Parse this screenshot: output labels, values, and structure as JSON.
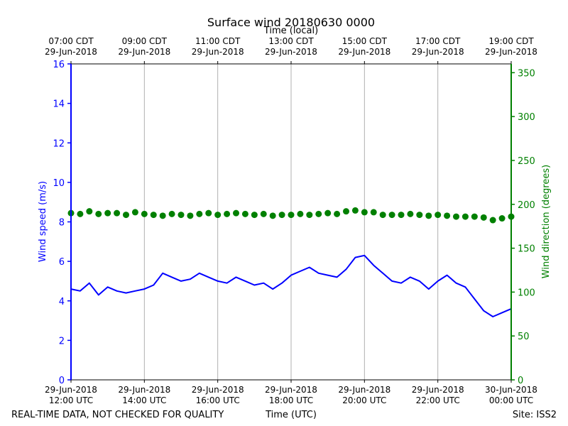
{
  "chart_data": {
    "type": "line",
    "title": "Surface wind 20180630 0000",
    "top_axis_label": "Time (local)",
    "xlabel": "Time (UTC)",
    "ylabel_left": "Wind speed (m/s)",
    "ylabel_right": "Wind direction (degrees)",
    "footer_left": "REAL-TIME DATA, NOT CHECKED FOR QUALITY",
    "footer_right": "Site: ISS2",
    "x_hours_range": [
      12,
      24
    ],
    "ylim_left": [
      0,
      16
    ],
    "ylim_right": [
      0,
      360
    ],
    "yticks_left": [
      "0",
      "2",
      "4",
      "6",
      "8",
      "10",
      "12",
      "14",
      "16"
    ],
    "yticks_right": [
      "0",
      "50",
      "100",
      "150",
      "200",
      "250",
      "300",
      "350"
    ],
    "xticks_bottom": [
      {
        "hour": 12,
        "line1": "29-Jun-2018",
        "line2": "12:00 UTC"
      },
      {
        "hour": 14,
        "line1": "29-Jun-2018",
        "line2": "14:00 UTC"
      },
      {
        "hour": 16,
        "line1": "29-Jun-2018",
        "line2": "16:00 UTC"
      },
      {
        "hour": 18,
        "line1": "29-Jun-2018",
        "line2": "18:00 UTC"
      },
      {
        "hour": 20,
        "line1": "29-Jun-2018",
        "line2": "20:00 UTC"
      },
      {
        "hour": 22,
        "line1": "29-Jun-2018",
        "line2": "22:00 UTC"
      },
      {
        "hour": 24,
        "line1": "30-Jun-2018",
        "line2": "00:00 UTC"
      }
    ],
    "xticks_top": [
      {
        "hour": 12,
        "line1": "07:00 CDT",
        "line2": "29-Jun-2018"
      },
      {
        "hour": 14,
        "line1": "09:00 CDT",
        "line2": "29-Jun-2018"
      },
      {
        "hour": 16,
        "line1": "11:00 CDT",
        "line2": "29-Jun-2018"
      },
      {
        "hour": 18,
        "line1": "13:00 CDT",
        "line2": "29-Jun-2018"
      },
      {
        "hour": 20,
        "line1": "15:00 CDT",
        "line2": "29-Jun-2018"
      },
      {
        "hour": 22,
        "line1": "17:00 CDT",
        "line2": "29-Jun-2018"
      },
      {
        "hour": 24,
        "line1": "19:00 CDT",
        "line2": "29-Jun-2018"
      }
    ],
    "series": [
      {
        "name": "Wind speed",
        "axis": "left",
        "style": "line",
        "color": "#0000ff",
        "x": [
          12.0,
          12.25,
          12.5,
          12.75,
          13.0,
          13.25,
          13.5,
          13.75,
          14.0,
          14.25,
          14.5,
          14.75,
          15.0,
          15.25,
          15.5,
          15.75,
          16.0,
          16.25,
          16.5,
          16.75,
          17.0,
          17.25,
          17.5,
          17.75,
          18.0,
          18.25,
          18.5,
          18.75,
          19.0,
          19.25,
          19.5,
          19.75,
          20.0,
          20.25,
          20.5,
          20.75,
          21.0,
          21.25,
          21.5,
          21.75,
          22.0,
          22.25,
          22.5,
          22.75,
          23.0,
          23.25,
          23.5,
          23.75,
          24.0
        ],
        "values": [
          4.6,
          4.5,
          4.9,
          4.3,
          4.7,
          4.5,
          4.4,
          4.5,
          4.6,
          4.8,
          5.4,
          5.2,
          5.0,
          5.1,
          5.4,
          5.2,
          5.0,
          4.9,
          5.2,
          5.0,
          4.8,
          4.9,
          4.6,
          4.9,
          5.3,
          5.5,
          5.7,
          5.4,
          5.3,
          5.2,
          5.6,
          6.2,
          6.3,
          5.8,
          5.4,
          5.0,
          4.9,
          5.2,
          5.0,
          4.6,
          5.0,
          5.3,
          4.9,
          4.7,
          4.1,
          3.5,
          3.2,
          3.4,
          3.6
        ]
      },
      {
        "name": "Wind direction",
        "axis": "right",
        "style": "markers",
        "color": "#008000",
        "x": [
          12.0,
          12.25,
          12.5,
          12.75,
          13.0,
          13.25,
          13.5,
          13.75,
          14.0,
          14.25,
          14.5,
          14.75,
          15.0,
          15.25,
          15.5,
          15.75,
          16.0,
          16.25,
          16.5,
          16.75,
          17.0,
          17.25,
          17.5,
          17.75,
          18.0,
          18.25,
          18.5,
          18.75,
          19.0,
          19.25,
          19.5,
          19.75,
          20.0,
          20.25,
          20.5,
          20.75,
          21.0,
          21.25,
          21.5,
          21.75,
          22.0,
          22.25,
          22.5,
          22.75,
          23.0,
          23.25,
          23.5,
          23.75,
          24.0
        ],
        "values": [
          190,
          189,
          192,
          189,
          190,
          190,
          188,
          191,
          189,
          188,
          187,
          189,
          188,
          187,
          189,
          190,
          188,
          189,
          190,
          189,
          188,
          189,
          187,
          188,
          188,
          189,
          188,
          189,
          190,
          189,
          192,
          193,
          191,
          191,
          188,
          188,
          188,
          189,
          188,
          187,
          188,
          187,
          186,
          186,
          186,
          185,
          182,
          184,
          186
        ]
      }
    ]
  }
}
